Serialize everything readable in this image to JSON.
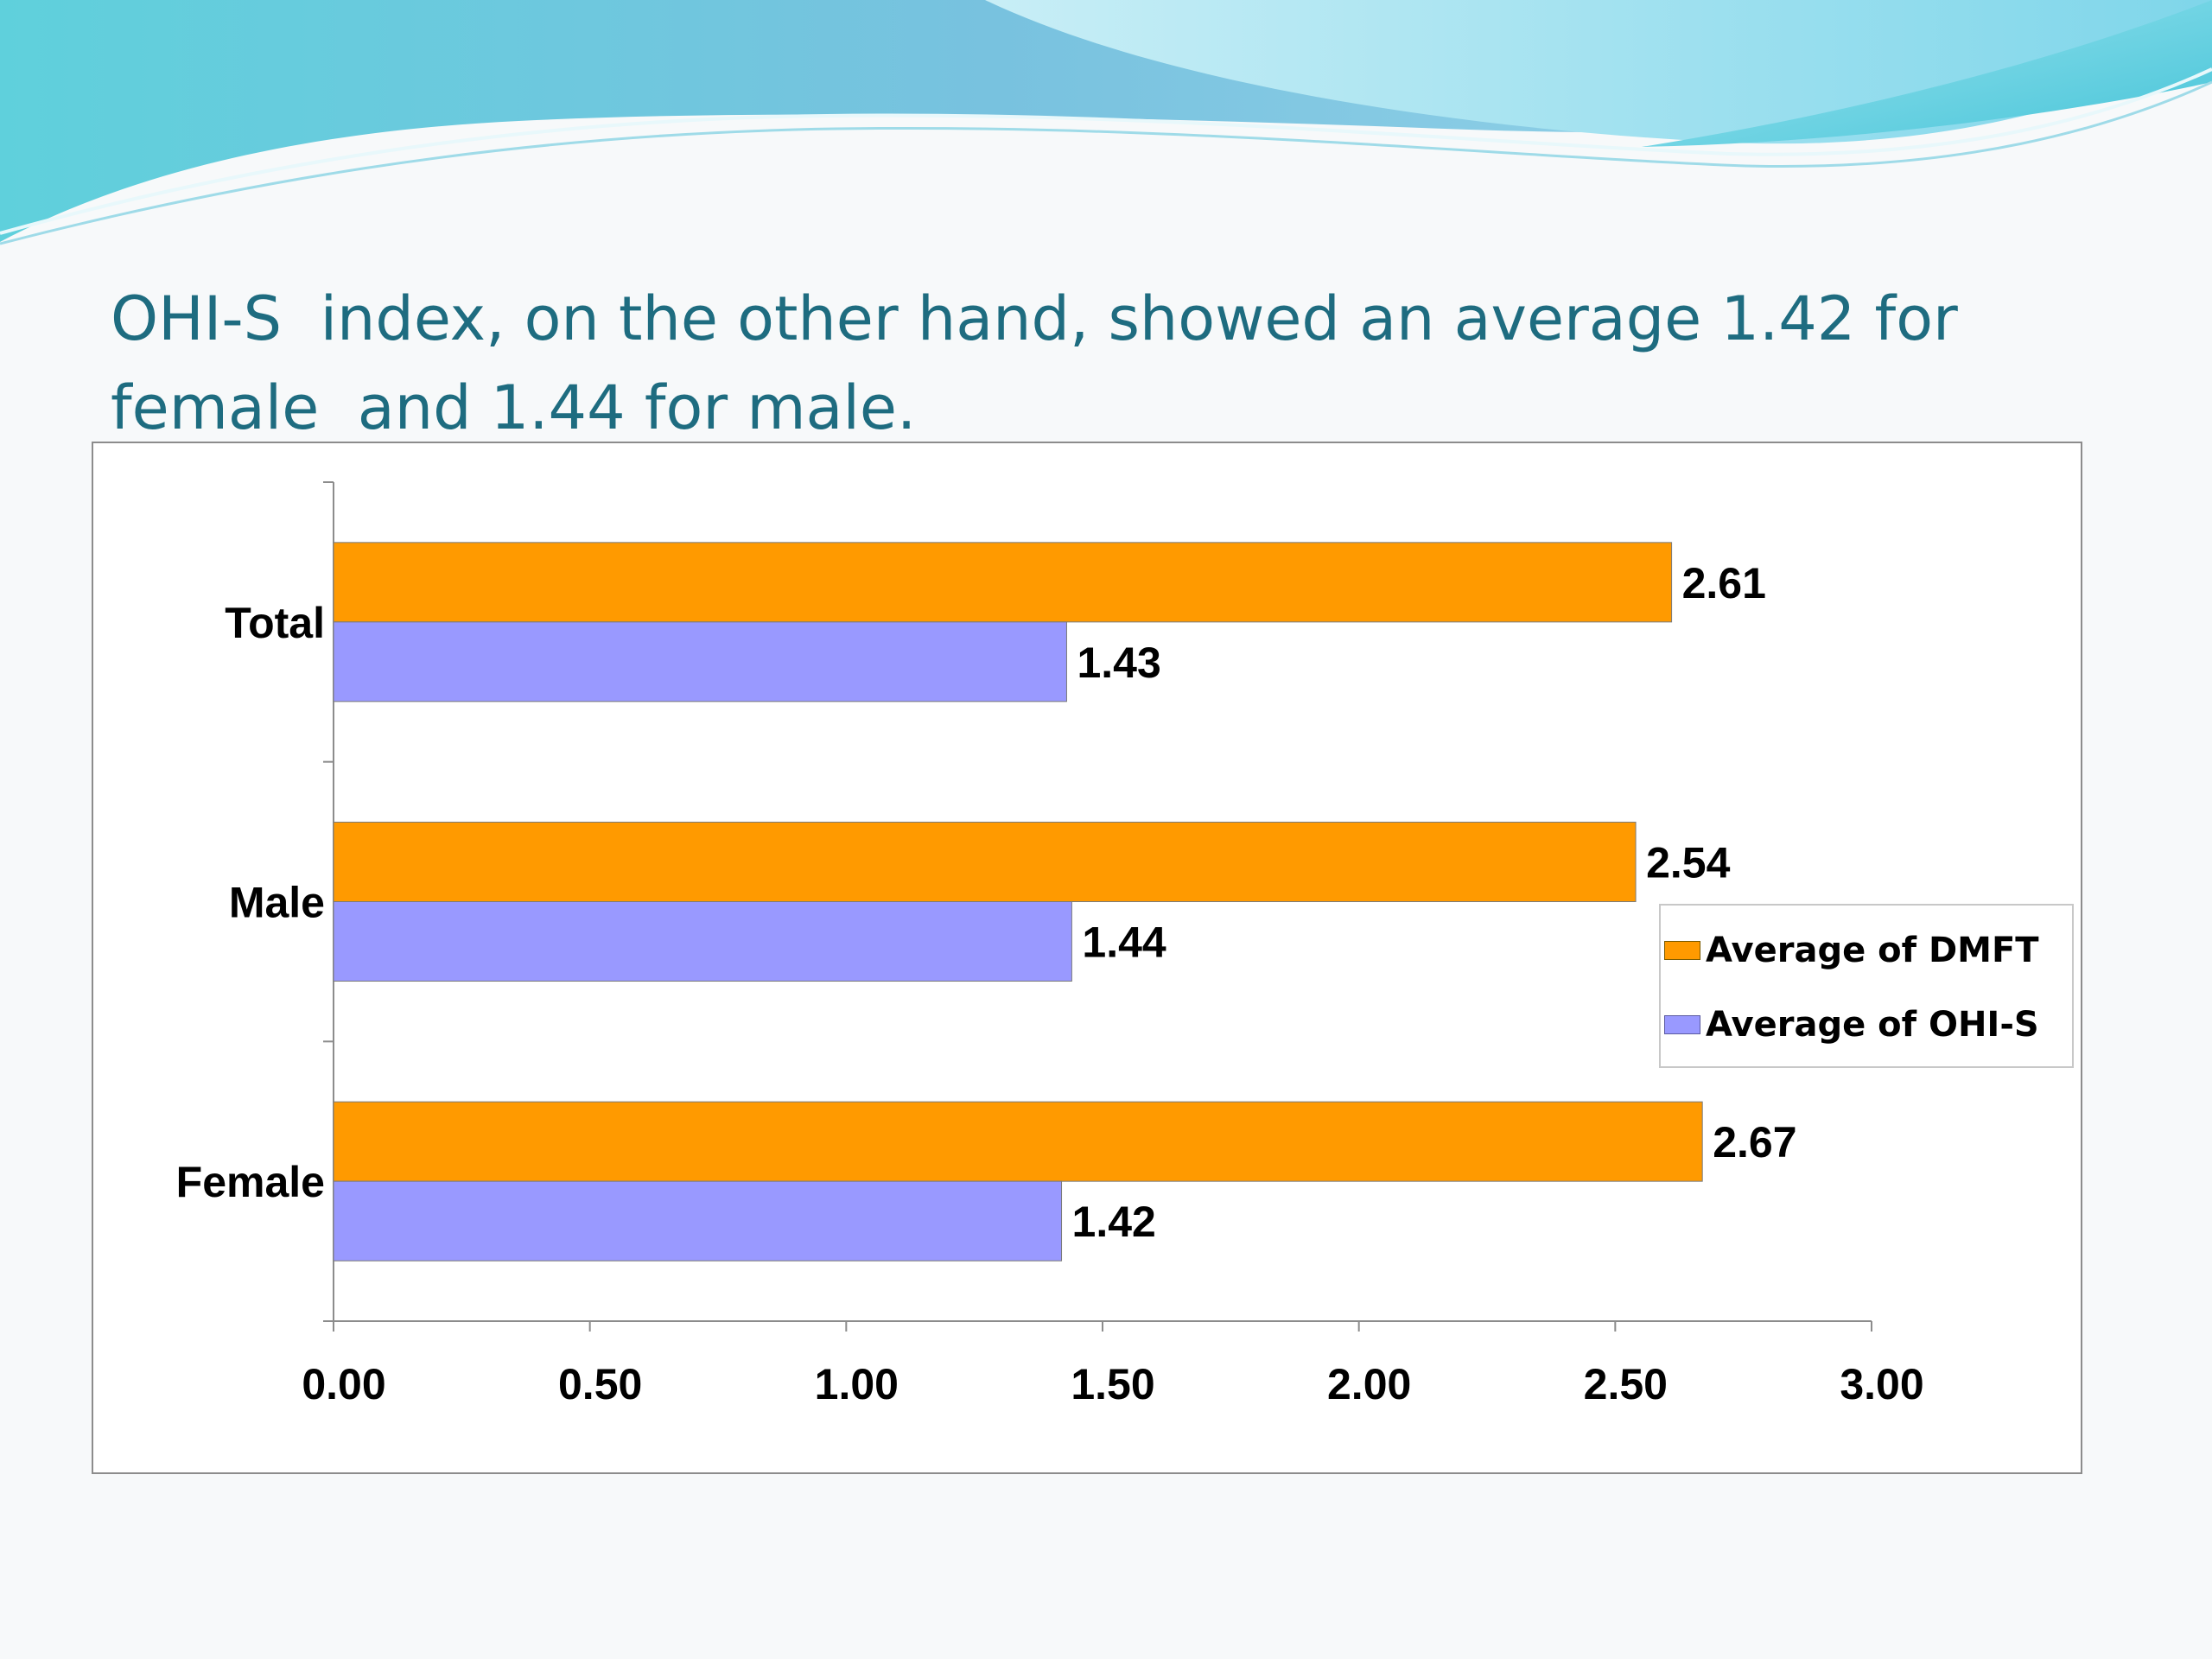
{
  "title_lines": [
    "OHI-S  index, on the other hand, showed an average 1.42 for",
    "female  and 1.44 for male."
  ],
  "colors": {
    "dmft": "#ff9a00",
    "ohis": "#9999ff",
    "title": "#1e6c80"
  },
  "chart_data": {
    "type": "bar",
    "orientation": "horizontal",
    "categories": [
      "Female",
      "Male",
      "Total"
    ],
    "series": [
      {
        "name": "Average of DMFT",
        "values": [
          2.67,
          2.54,
          2.61
        ]
      },
      {
        "name": "Average of OHI-S",
        "values": [
          1.42,
          1.44,
          1.43
        ]
      }
    ],
    "xlim": [
      0,
      3
    ],
    "x_ticks": [
      "0.00",
      "0.50",
      "1.00",
      "1.50",
      "2.00",
      "2.50",
      "3.00"
    ],
    "data_labels": [
      [
        "2.67",
        "2.54",
        "2.61"
      ],
      [
        "1.42",
        "1.44",
        "1.43"
      ]
    ],
    "grid": false,
    "legend_position": "right",
    "title": "",
    "xlabel": "",
    "ylabel": ""
  }
}
